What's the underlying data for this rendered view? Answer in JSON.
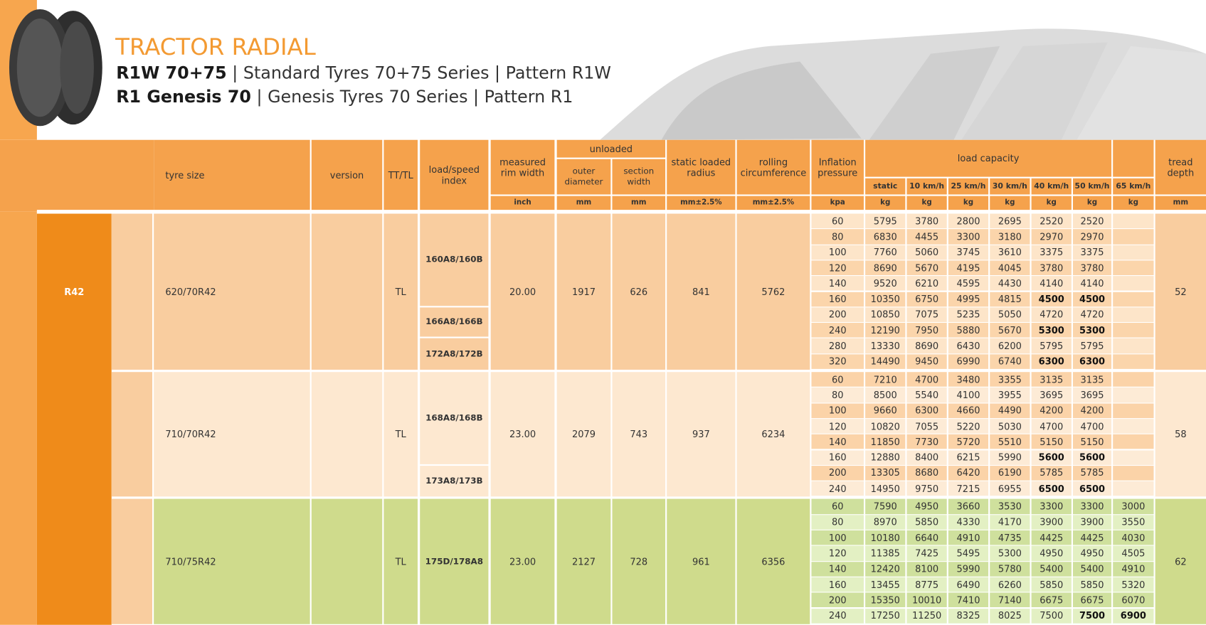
{
  "header": {
    "title": "TRACTOR RADIAL",
    "lines": [
      {
        "bold": "R1W 70+75",
        "text": "| Standard Tyres 70+75 Series | Pattern R1W"
      },
      {
        "bold": "R1 Genesis 70",
        "text": "| Genesis Tyres 70 Series | Pattern R1"
      }
    ]
  },
  "table": {
    "columns": {
      "size": "tyre size",
      "version": "version",
      "tt": "TT/TL",
      "index": "load/speed index",
      "rim": "measured rim width",
      "unloaded": "unloaded",
      "outer": "outer diameter",
      "section": "section width",
      "radius": "static loaded radius",
      "circ": "rolling circumference",
      "pressure": "Inflation pressure",
      "capacity": "load capacity",
      "speeds": [
        "static",
        "10 km/h",
        "25 km/h",
        "30 km/h",
        "40 km/h",
        "50 km/h",
        "65 km/h"
      ],
      "tread": "tread depth"
    },
    "units": {
      "rim": "inch",
      "outer": "mm",
      "section": "mm",
      "radius": "mm±2.5%",
      "circ": "mm±2.5%",
      "pressure": "kpa",
      "speeds": [
        "kg",
        "kg",
        "kg",
        "kg",
        "kg",
        "kg",
        "kg"
      ],
      "tread": "mm"
    },
    "rim_group": "R42",
    "groups": [
      {
        "theme": "peach",
        "size": "620/70R42",
        "tt": "TL",
        "rim": "20.00",
        "outer": "1917",
        "section": "626",
        "radius": "841",
        "circ": "5762",
        "tread": "52",
        "rows": [
          {
            "load_index": "160A8/160B",
            "cells": [
              "60",
              "5795",
              "3780",
              "2800",
              "2695",
              "2520",
              "2520",
              null
            ]
          },
          {
            "cells": [
              "80",
              "6830",
              "4455",
              "3300",
              "3180",
              "2970",
              "2970",
              null
            ]
          },
          {
            "cells": [
              "100",
              "7760",
              "5060",
              "3745",
              "3610",
              "3375",
              "3375",
              null
            ]
          },
          {
            "cells": [
              "120",
              "8690",
              "5670",
              "4195",
              "4045",
              "3780",
              "3780",
              null
            ]
          },
          {
            "cells": [
              "140",
              "9520",
              "6210",
              "4595",
              "4430",
              "4140",
              "4140",
              null
            ]
          },
          {
            "cells": [
              "160",
              "10350",
              "6750",
              "4995",
              "4815",
              {
                "text": "4500",
                "bold": true
              },
              {
                "text": "4500",
                "bold": true
              },
              null
            ]
          },
          {
            "load_index": "166A8/166B",
            "cells": [
              "200",
              "10850",
              "7075",
              "5235",
              "5050",
              "4720",
              "4720",
              null
            ]
          },
          {
            "cells": [
              "240",
              "12190",
              "7950",
              "5880",
              "5670",
              {
                "text": "5300",
                "bold": true
              },
              {
                "text": "5300",
                "bold": true
              },
              null
            ]
          },
          {
            "load_index": "172A8/172B",
            "cells": [
              "280",
              "13330",
              "8690",
              "6430",
              "6200",
              "5795",
              "5795",
              null
            ]
          },
          {
            "cells": [
              "320",
              "14490",
              "9450",
              "6990",
              "6740",
              {
                "text": "6300",
                "bold": true
              },
              {
                "text": "6300",
                "bold": true
              },
              null
            ]
          }
        ]
      },
      {
        "theme": "cream",
        "size": "710/70R42",
        "tt": "TL",
        "rim": "23.00",
        "outer": "2079",
        "section": "743",
        "radius": "937",
        "circ": "6234",
        "tread": "58",
        "rows": [
          {
            "load_index": "168A8/168B",
            "cells": [
              "60",
              "7210",
              "4700",
              "3480",
              "3355",
              "3135",
              "3135",
              null
            ]
          },
          {
            "cells": [
              "80",
              "8500",
              "5540",
              "4100",
              "3955",
              "3695",
              "3695",
              null
            ]
          },
          {
            "cells": [
              "100",
              "9660",
              "6300",
              "4660",
              "4490",
              "4200",
              "4200",
              null
            ]
          },
          {
            "cells": [
              "120",
              "10820",
              "7055",
              "5220",
              "5030",
              "4700",
              "4700",
              null
            ]
          },
          {
            "cells": [
              "140",
              "11850",
              "7730",
              "5720",
              "5510",
              "5150",
              "5150",
              null
            ]
          },
          {
            "cells": [
              "160",
              "12880",
              "8400",
              "6215",
              "5990",
              {
                "text": "5600",
                "bold": true
              },
              {
                "text": "5600",
                "bold": true
              },
              null
            ]
          },
          {
            "load_index": "173A8/173B",
            "cells": [
              "200",
              "13305",
              "8680",
              "6420",
              "6190",
              "5785",
              "5785",
              null
            ]
          },
          {
            "cells": [
              "240",
              "14950",
              "9750",
              "7215",
              "6955",
              {
                "text": "6500",
                "bold": true
              },
              {
                "text": "6500",
                "bold": true
              },
              null
            ]
          }
        ]
      },
      {
        "theme": "green",
        "size": "710/75R42",
        "tt": "TL",
        "rim": "23.00",
        "outer": "2127",
        "section": "728",
        "radius": "961",
        "circ": "6356",
        "tread": "62",
        "rows": [
          {
            "load_index": "175D/178A8",
            "cells": [
              "60",
              "7590",
              "4950",
              "3660",
              "3530",
              "3300",
              "3300",
              "3000"
            ]
          },
          {
            "cells": [
              "80",
              "8970",
              "5850",
              "4330",
              "4170",
              "3900",
              "3900",
              "3550"
            ]
          },
          {
            "cells": [
              "100",
              "10180",
              "6640",
              "4910",
              "4735",
              "4425",
              "4425",
              "4030"
            ]
          },
          {
            "cells": [
              "120",
              "11385",
              "7425",
              "5495",
              "5300",
              "4950",
              "4950",
              "4505"
            ]
          },
          {
            "cells": [
              "140",
              "12420",
              "8100",
              "5990",
              "5780",
              "5400",
              "5400",
              "4910"
            ]
          },
          {
            "cells": [
              "160",
              "13455",
              "8775",
              "6490",
              "6260",
              "5850",
              "5850",
              "5320"
            ]
          },
          {
            "cells": [
              "200",
              "15350",
              "10010",
              "7410",
              "7140",
              "6675",
              "6675",
              "6070"
            ]
          },
          {
            "cells": [
              "240",
              "17250",
              "11250",
              "8325",
              "8025",
              "7500",
              {
                "text": "7500",
                "bold": true
              },
              {
                "text": "6900",
                "bold": true
              }
            ]
          }
        ]
      }
    ]
  }
}
